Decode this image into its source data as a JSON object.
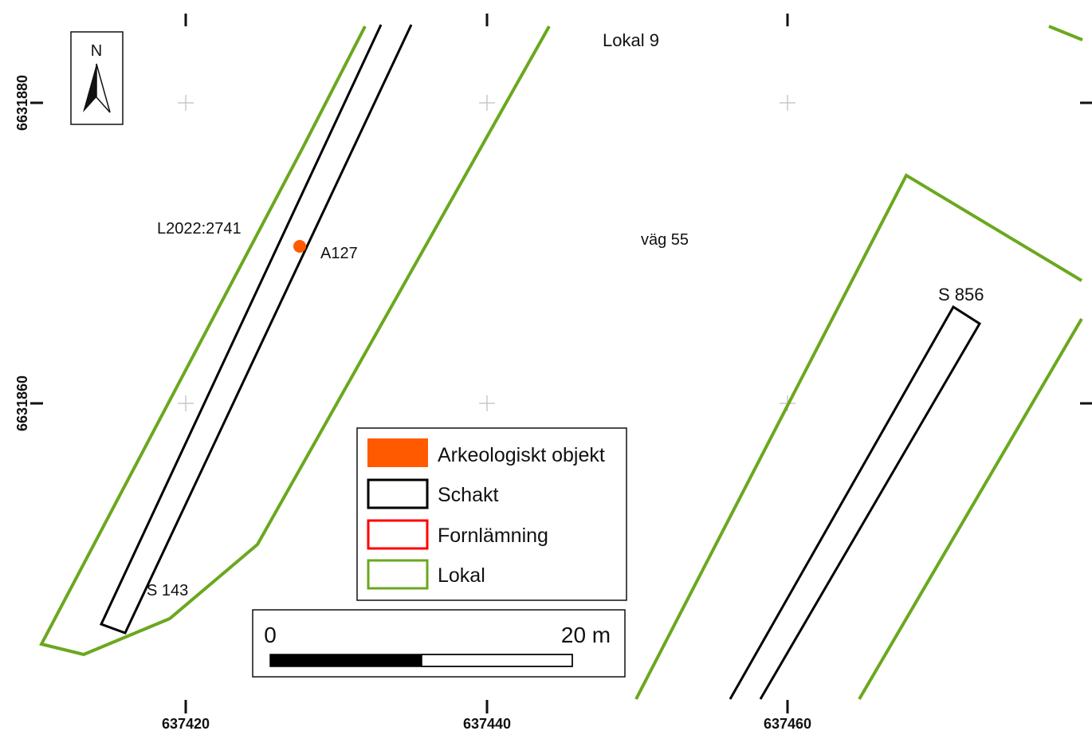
{
  "map": {
    "north_label": "N",
    "x_ticks": [
      "637420",
      "637440",
      "637460"
    ],
    "y_ticks": [
      "6631880",
      "6631860"
    ],
    "labels": {
      "lokal": "Lokal 9",
      "fornlamning": "L2022:2741",
      "object": "A127",
      "road": "väg 55",
      "trench_left": "S 143",
      "trench_right": "S 856"
    },
    "legend": [
      {
        "label": "Arkeologiskt objekt",
        "swatch": "filled",
        "color": "#ff5a00"
      },
      {
        "label": "Schakt",
        "swatch": "outline",
        "color": "#000000"
      },
      {
        "label": "Fornlämning",
        "swatch": "outline",
        "color": "#ff0000"
      },
      {
        "label": "Lokal",
        "swatch": "outline",
        "color": "#6aa81e"
      }
    ],
    "scalebar": {
      "start": "0",
      "end": "20 m"
    },
    "colors": {
      "lokal": "#6aa81e",
      "schakt": "#000000",
      "object": "#ff5a00",
      "grid": "#c8c8c8"
    }
  }
}
